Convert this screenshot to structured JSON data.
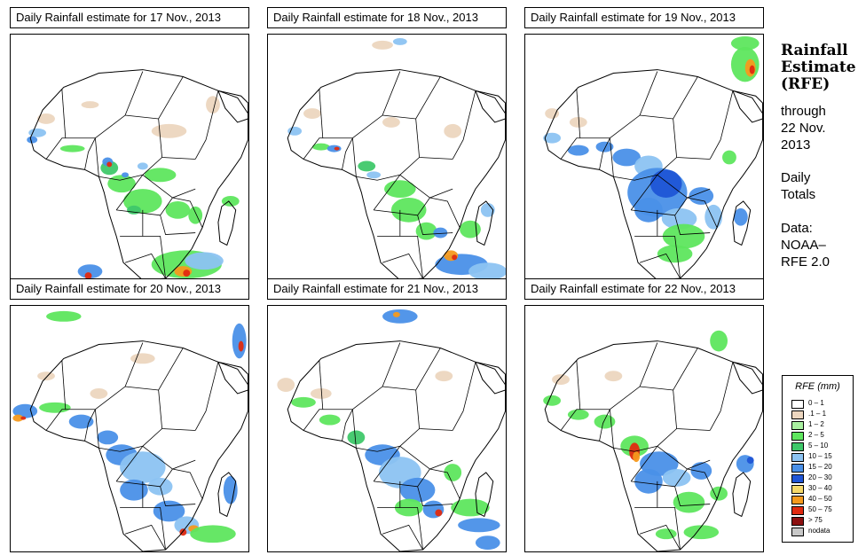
{
  "panels": [
    {
      "title": "Daily Rainfall estimate for  17 Nov., 2013"
    },
    {
      "title": "Daily Rainfall estimate for  18 Nov., 2013"
    },
    {
      "title": "Daily Rainfall estimate for  19 Nov., 2013"
    },
    {
      "title": "Daily Rainfall estimate for  20 Nov., 2013"
    },
    {
      "title": "Daily Rainfall estimate for  21 Nov., 2013"
    },
    {
      "title": "Daily Rainfall estimate for  22 Nov., 2013"
    }
  ],
  "sidebar": {
    "title_line1": "Rainfall",
    "title_line2": "Estimate",
    "title_line3": "(RFE)",
    "through": "through",
    "through_date_line1": "22 Nov.",
    "through_date_line2": "2013",
    "totals_line1": "Daily",
    "totals_line2": "Totals",
    "data_line1": "Data:",
    "data_line2": "NOAA–",
    "data_line3": "RFE 2.0"
  },
  "legend": {
    "title": "RFE (mm)",
    "items": [
      {
        "label": "0 – 1",
        "color": "#ffffff"
      },
      {
        "label": ".1 – 1",
        "color": "#ecd6bf"
      },
      {
        "label": "1 – 2",
        "color": "#a9f0a0"
      },
      {
        "label": "2 – 5",
        "color": "#5ee65e"
      },
      {
        "label": "5 – 10",
        "color": "#3fc86a"
      },
      {
        "label": "10 – 15",
        "color": "#8cc3f2"
      },
      {
        "label": "15 – 20",
        "color": "#4a90e8"
      },
      {
        "label": "20 – 30",
        "color": "#1f55d6"
      },
      {
        "label": "30 – 40",
        "color": "#f6d96a"
      },
      {
        "label": "40 – 50",
        "color": "#f59a1e"
      },
      {
        "label": "50 – 75",
        "color": "#e02a10"
      },
      {
        "label": "> 75",
        "color": "#8c1010"
      },
      {
        "label": "nodata",
        "color": "#c8c8c8"
      }
    ]
  }
}
